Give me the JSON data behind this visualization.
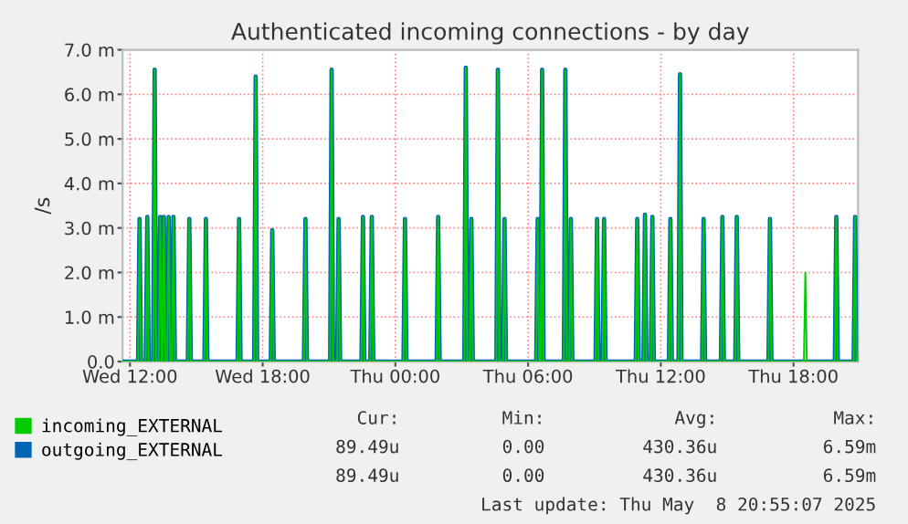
{
  "chart_data": {
    "type": "line",
    "title": "Authenticated incoming connections - by day",
    "ylabel": "/s",
    "x": [
      "2025-05-07T11:40",
      "2025-05-07T12:22",
      "2025-05-07T12:26",
      "2025-05-07T12:30",
      "2025-05-07T12:43",
      "2025-05-07T12:47",
      "2025-05-07T12:51",
      "2025-05-07T13:03",
      "2025-05-07T13:07",
      "2025-05-07T13:11",
      "2025-05-07T13:18",
      "2025-05-07T13:22",
      "2025-05-07T13:26",
      "2025-05-07T13:28",
      "2025-05-07T13:32",
      "2025-05-07T13:36",
      "2025-05-07T13:41",
      "2025-05-07T13:45",
      "2025-05-07T13:49",
      "2025-05-07T13:54",
      "2025-05-07T13:58",
      "2025-05-07T14:02",
      "2025-05-07T14:37",
      "2025-05-07T14:41",
      "2025-05-07T14:45",
      "2025-05-07T15:22",
      "2025-05-07T15:26",
      "2025-05-07T15:30",
      "2025-05-07T16:52",
      "2025-05-07T16:56",
      "2025-05-07T17:00",
      "2025-05-07T17:37",
      "2025-05-07T17:41",
      "2025-05-07T17:45",
      "2025-05-07T18:22",
      "2025-05-07T18:26",
      "2025-05-07T18:30",
      "2025-05-07T19:52",
      "2025-05-07T19:56",
      "2025-05-07T20:00",
      "2025-05-07T21:03",
      "2025-05-07T21:07",
      "2025-05-07T21:11",
      "2025-05-07T21:22",
      "2025-05-07T21:26",
      "2025-05-07T21:30",
      "2025-05-07T22:28",
      "2025-05-07T22:32",
      "2025-05-07T22:36",
      "2025-05-07T22:52",
      "2025-05-07T22:56",
      "2025-05-07T23:00",
      "2025-05-08T00:22",
      "2025-05-08T00:26",
      "2025-05-08T00:30",
      "2025-05-08T01:52",
      "2025-05-08T01:56",
      "2025-05-08T02:00",
      "2025-05-08T03:07",
      "2025-05-08T03:11",
      "2025-05-08T03:15",
      "2025-05-08T03:22",
      "2025-05-08T03:26",
      "2025-05-08T03:30",
      "2025-05-08T04:34",
      "2025-05-08T04:38",
      "2025-05-08T04:42",
      "2025-05-08T04:52",
      "2025-05-08T04:56",
      "2025-05-08T05:00",
      "2025-05-08T06:22",
      "2025-05-08T06:26",
      "2025-05-08T06:30",
      "2025-05-08T06:34",
      "2025-05-08T06:38",
      "2025-05-08T06:42",
      "2025-05-08T07:37",
      "2025-05-08T07:41",
      "2025-05-08T07:45",
      "2025-05-08T07:52",
      "2025-05-08T07:56",
      "2025-05-08T08:00",
      "2025-05-08T09:03",
      "2025-05-08T09:07",
      "2025-05-08T09:11",
      "2025-05-08T09:22",
      "2025-05-08T09:26",
      "2025-05-08T09:30",
      "2025-05-08T10:52",
      "2025-05-08T10:56",
      "2025-05-08T11:00",
      "2025-05-08T11:13",
      "2025-05-08T11:17",
      "2025-05-08T11:21",
      "2025-05-08T11:33",
      "2025-05-08T11:37",
      "2025-05-08T11:41",
      "2025-05-08T12:22",
      "2025-05-08T12:26",
      "2025-05-08T12:30",
      "2025-05-08T12:48",
      "2025-05-08T12:52",
      "2025-05-08T12:56",
      "2025-05-08T13:52",
      "2025-05-08T13:56",
      "2025-05-08T14:00",
      "2025-05-08T14:43",
      "2025-05-08T14:47",
      "2025-05-08T14:51",
      "2025-05-08T15:22",
      "2025-05-08T15:26",
      "2025-05-08T15:30",
      "2025-05-08T16:52",
      "2025-05-08T16:56",
      "2025-05-08T17:00",
      "2025-05-08T18:28",
      "2025-05-08T18:32",
      "2025-05-08T18:36",
      "2025-05-08T19:52",
      "2025-05-08T19:56",
      "2025-05-08T20:00",
      "2025-05-08T20:43",
      "2025-05-08T20:47",
      "2025-05-08T20:51",
      "2025-05-08T20:55"
    ],
    "series": [
      {
        "name": "incoming_EXTERNAL",
        "color": "#00cc00",
        "values": [
          0,
          0,
          3.2,
          0,
          0,
          3.25,
          0,
          0,
          6.55,
          0,
          0,
          3.25,
          0,
          0,
          3.25,
          0,
          0,
          3.25,
          0,
          0,
          3.25,
          0,
          0,
          3.2,
          0,
          0,
          3.2,
          0,
          0,
          3.2,
          0,
          0,
          6.4,
          0,
          0,
          2.95,
          0,
          0,
          3.2,
          0,
          0,
          6.55,
          0,
          0,
          3.2,
          0,
          0,
          3.25,
          0,
          0,
          3.25,
          0,
          0,
          3.2,
          0,
          0,
          3.25,
          0,
          0,
          6.6,
          0,
          0,
          3.2,
          0,
          0,
          6.55,
          0,
          0,
          3.2,
          0,
          0,
          3.2,
          0,
          0,
          6.55,
          0,
          0,
          6.55,
          0,
          0,
          3.2,
          0,
          0,
          3.2,
          0,
          0,
          3.2,
          0,
          0,
          3.2,
          0,
          0,
          3.3,
          0,
          0,
          3.25,
          0,
          0,
          3.2,
          0,
          0,
          6.45,
          0,
          0,
          3.2,
          0,
          0,
          3.25,
          0,
          0,
          3.25,
          0,
          0,
          3.2,
          0,
          0,
          2.0,
          0,
          0,
          3.25,
          0,
          0,
          3.25,
          0,
          0.09
        ]
      },
      {
        "name": "outgoing_EXTERNAL",
        "color": "#0066b3",
        "values": [
          0,
          0,
          3.2,
          0,
          0,
          3.25,
          0,
          0,
          6.55,
          0,
          0,
          3.25,
          0,
          0,
          3.25,
          0,
          0,
          3.25,
          0,
          0,
          3.25,
          0,
          0,
          3.2,
          0,
          0,
          3.2,
          0,
          0,
          3.2,
          0,
          0,
          6.4,
          0,
          0,
          2.95,
          0,
          0,
          3.2,
          0,
          0,
          6.55,
          0,
          0,
          3.2,
          0,
          0,
          3.25,
          0,
          0,
          3.25,
          0,
          0,
          3.2,
          0,
          0,
          3.25,
          0,
          0,
          6.6,
          0,
          0,
          3.2,
          0,
          0,
          6.55,
          0,
          0,
          3.2,
          0,
          0,
          3.2,
          0,
          0,
          6.55,
          0,
          0,
          6.55,
          0,
          0,
          3.2,
          0,
          0,
          3.2,
          0,
          0,
          3.2,
          0,
          0,
          3.2,
          0,
          0,
          3.3,
          0,
          0,
          3.25,
          0,
          0,
          3.2,
          0,
          0,
          6.45,
          0,
          0,
          3.2,
          0,
          0,
          3.25,
          0,
          0,
          3.25,
          0,
          0,
          3.2,
          0,
          0,
          0,
          0,
          0,
          3.25,
          0,
          0,
          3.25,
          0,
          0.09
        ]
      }
    ],
    "xlim": [
      "2025-05-07T11:40",
      "2025-05-08T20:55"
    ],
    "xticks": [
      {
        "value": "2025-05-07T12:00",
        "label": "Wed 12:00"
      },
      {
        "value": "2025-05-07T18:00",
        "label": "Wed 18:00"
      },
      {
        "value": "2025-05-08T00:00",
        "label": "Thu 00:00"
      },
      {
        "value": "2025-05-08T06:00",
        "label": "Thu 06:00"
      },
      {
        "value": "2025-05-08T12:00",
        "label": "Thu 12:00"
      },
      {
        "value": "2025-05-08T18:00",
        "label": "Thu 18:00"
      }
    ],
    "ylim": [
      0,
      7
    ],
    "yticks": [
      {
        "value": 0,
        "label": "0.0"
      },
      {
        "value": 1,
        "label": "1.0 m"
      },
      {
        "value": 2,
        "label": "2.0 m"
      },
      {
        "value": 3,
        "label": "3.0 m"
      },
      {
        "value": 4,
        "label": "4.0 m"
      },
      {
        "value": 5,
        "label": "5.0 m"
      },
      {
        "value": 6,
        "label": "6.0 m"
      },
      {
        "value": 7,
        "label": "7.0 m"
      }
    ],
    "grid": true,
    "legend": "bottom",
    "marker": "none",
    "line_style": "solid",
    "annotations": [
      "Cur:",
      "Min:",
      "Avg:",
      "Max:",
      "89.49u",
      "0.00",
      "430.36u",
      "6.59m",
      "89.49u",
      "0.00",
      "430.36u",
      "6.59m",
      "Last update: Thu May  8 20:55:07 2025"
    ]
  }
}
